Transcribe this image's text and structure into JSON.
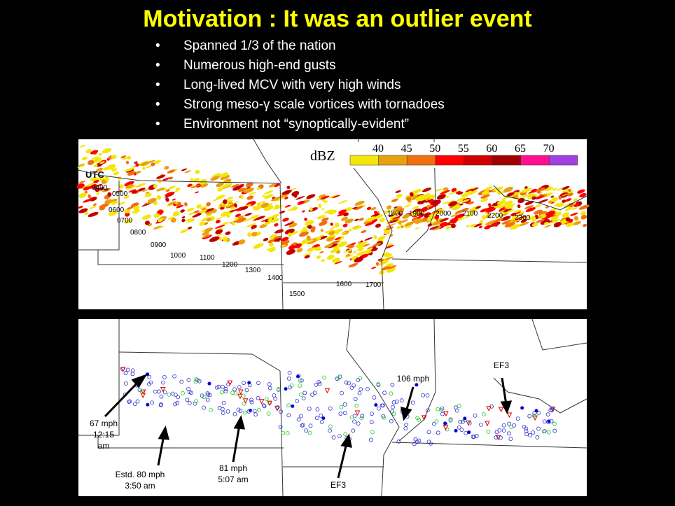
{
  "title": "Motivation :  It was an outlier event",
  "bullets": [
    "Spanned 1/3 of the nation",
    "Numerous high-end gusts",
    "Long-lived MCV with very high winds",
    "Strong meso-γ scale vortices with tornadoes",
    "Environment not “synoptically-evident”"
  ],
  "radar_map": {
    "legend_title": "dBZ",
    "legend": [
      40,
      45,
      50,
      55,
      60,
      65,
      70
    ],
    "utc_label": "UTC",
    "times": [
      "0400",
      "0500",
      "0600",
      "0700",
      "0800",
      "0900",
      "1000",
      "1100",
      "1200",
      "1300",
      "1400",
      "1500",
      "1600",
      "1700",
      "1800",
      "1900",
      "2000",
      "2100",
      "2200",
      "2300"
    ]
  },
  "reports_map": {
    "annotations": [
      {
        "lines": [
          "67 mph",
          "12:15",
          "am"
        ]
      },
      {
        "lines": [
          "Estd. 80 mph",
          "3:50 am"
        ]
      },
      {
        "lines": [
          "81 mph",
          "5:07 am"
        ]
      },
      {
        "lines": [
          "EF3"
        ]
      },
      {
        "lines": [
          "106 mph"
        ]
      },
      {
        "lines": [
          "EF3"
        ]
      }
    ]
  }
}
